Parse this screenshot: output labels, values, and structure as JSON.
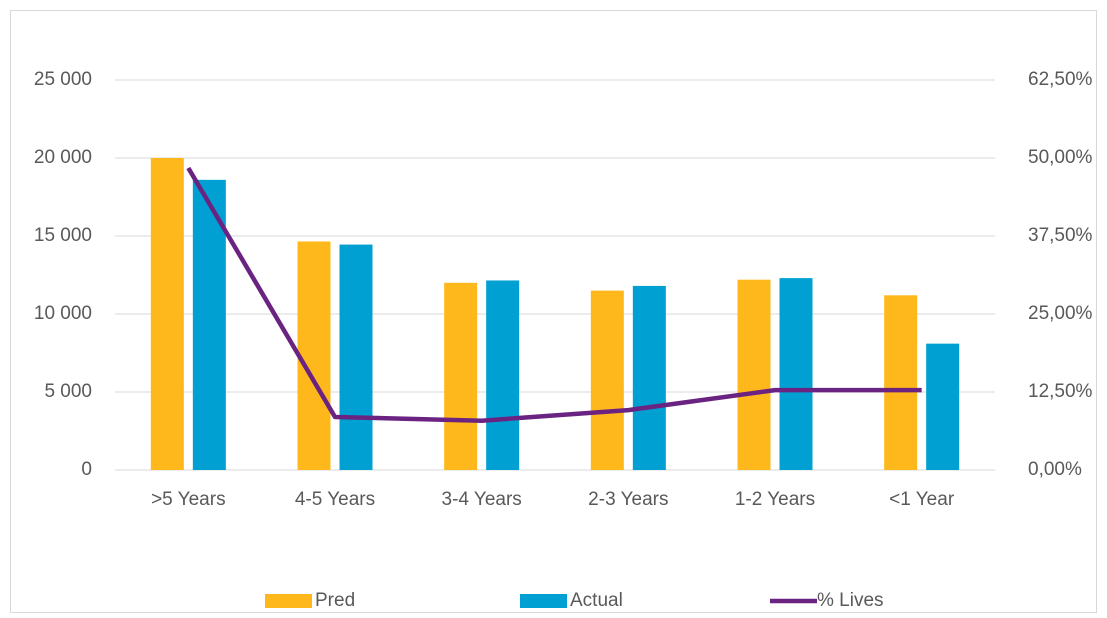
{
  "chart_data": {
    "type": "bar_line",
    "categories": [
      ">5 Years",
      "4-5 Years",
      "3-4 Years",
      "2-3 Years",
      "1-2 Years",
      "<1 Year"
    ],
    "series": [
      {
        "name": "Pred",
        "color": "#ffb81c",
        "type": "bar",
        "values": [
          20000,
          14650,
          12000,
          11500,
          12200,
          11200
        ]
      },
      {
        "name": "Actual",
        "color": "#00a0d2",
        "type": "bar",
        "values": [
          18600,
          14450,
          12150,
          11800,
          12300,
          8100
        ]
      },
      {
        "name": "% Lives",
        "color": "#6b2382",
        "type": "line",
        "axis": "y2",
        "values": [
          48.4,
          8.5,
          7.9,
          9.6,
          12.8,
          12.8
        ]
      }
    ],
    "ylim": [
      0,
      25000
    ],
    "yticks": [
      0,
      {
        "value": 5000,
        "label": "5 000"
      },
      {
        "value": 10000,
        "label": "10 000"
      },
      {
        "value": 15000,
        "label": "15 000"
      },
      {
        "value": 20000,
        "label": "20 000"
      },
      {
        "value": 25000,
        "label": "25 000"
      }
    ],
    "y2lim": [
      0,
      62.5
    ],
    "y2ticks": [
      {
        "value": 0,
        "label": "0,00%"
      },
      {
        "value": 12.5,
        "label": "12,50%"
      },
      {
        "value": 25,
        "label": "25,00%"
      },
      {
        "value": 37.5,
        "label": "37,50%"
      },
      {
        "value": 50,
        "label": "50,00%"
      },
      {
        "value": 62.5,
        "label": "62,50%"
      }
    ],
    "grid": true,
    "legend": "bottom"
  }
}
